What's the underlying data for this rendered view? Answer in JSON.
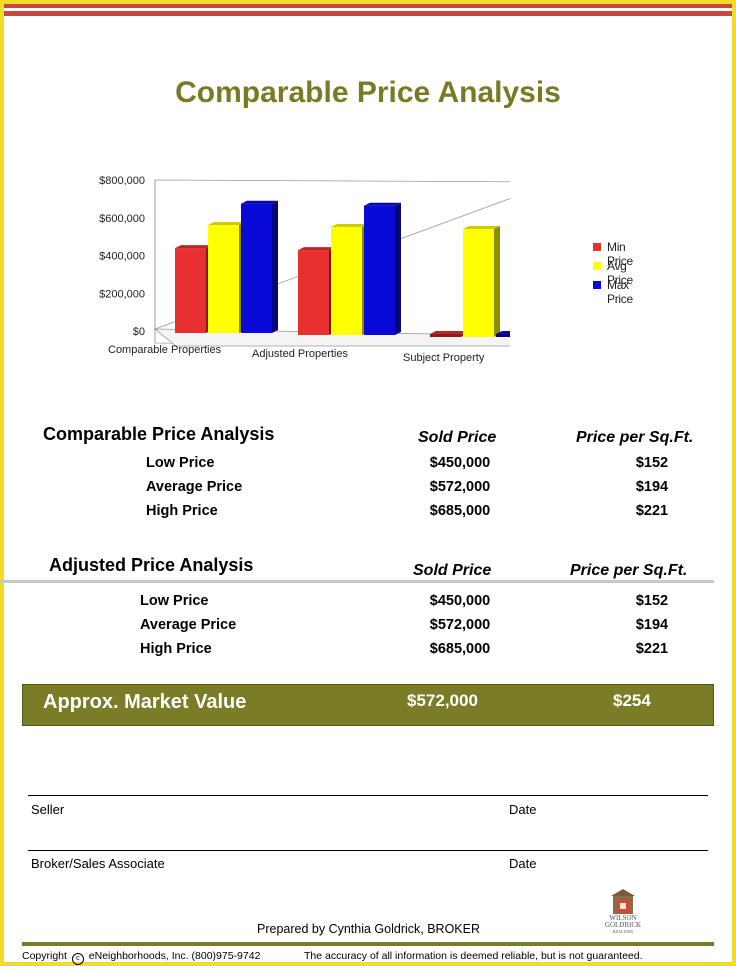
{
  "title": "Comparable Price Analysis",
  "chart_data": {
    "type": "bar",
    "categories": [
      "Comparable Properties",
      "Adjusted Properties",
      "Subject Property"
    ],
    "series": [
      {
        "name": "Min Price",
        "values": [
          450000,
          450000,
          0
        ],
        "color": "#e83030"
      },
      {
        "name": "Avg Price",
        "values": [
          572000,
          572000,
          572000
        ],
        "color": "#ffff00"
      },
      {
        "name": "Max Price",
        "values": [
          685000,
          685000,
          0
        ],
        "color": "#0a0ad8"
      }
    ],
    "y_ticks": [
      "$800,000",
      "$600,000",
      "$400,000",
      "$200,000",
      "$0"
    ],
    "ylim": [
      0,
      800000
    ],
    "legend_position": "right",
    "grid": false,
    "style": "3d"
  },
  "comparable": {
    "heading": "Comparable Price Analysis",
    "col_sold": "Sold Price",
    "col_sqft": "Price per Sq.Ft.",
    "rows": [
      {
        "label": "Low Price",
        "sold": "$450,000",
        "sqft": "$152"
      },
      {
        "label": "Average Price",
        "sold": "$572,000",
        "sqft": "$194"
      },
      {
        "label": "High Price",
        "sold": "$685,000",
        "sqft": "$221"
      }
    ]
  },
  "adjusted": {
    "heading": "Adjusted Price Analysis",
    "col_sold": "Sold Price",
    "col_sqft": "Price per Sq.Ft.",
    "rows": [
      {
        "label": "Low Price",
        "sold": "$450,000",
        "sqft": "$152"
      },
      {
        "label": "Average Price",
        "sold": "$572,000",
        "sqft": "$194"
      },
      {
        "label": "High Price",
        "sold": "$685,000",
        "sqft": "$221"
      }
    ]
  },
  "market": {
    "label": "Approx. Market Value",
    "sold": "$572,000",
    "sqft": "$254"
  },
  "signatures": {
    "seller": "Seller",
    "date1": "Date",
    "broker": "Broker/Sales Associate",
    "date2": "Date"
  },
  "prepared_by": "Prepared by Cynthia Goldrick, BROKER",
  "logo": {
    "line1": "WILSON",
    "line2": "GOLDRICK",
    "line3": "REALTORS"
  },
  "footer": {
    "copyright": "Copyright",
    "company": "eNeighborhoods, Inc. (800)975-9742",
    "disclaimer": "The accuracy of all information is deemed reliable, but is not guaranteed."
  },
  "colors": {
    "accent_olive": "#7b7c27",
    "frame_yellow": "#f2dc2a",
    "stripe_red": "#c8463c"
  }
}
